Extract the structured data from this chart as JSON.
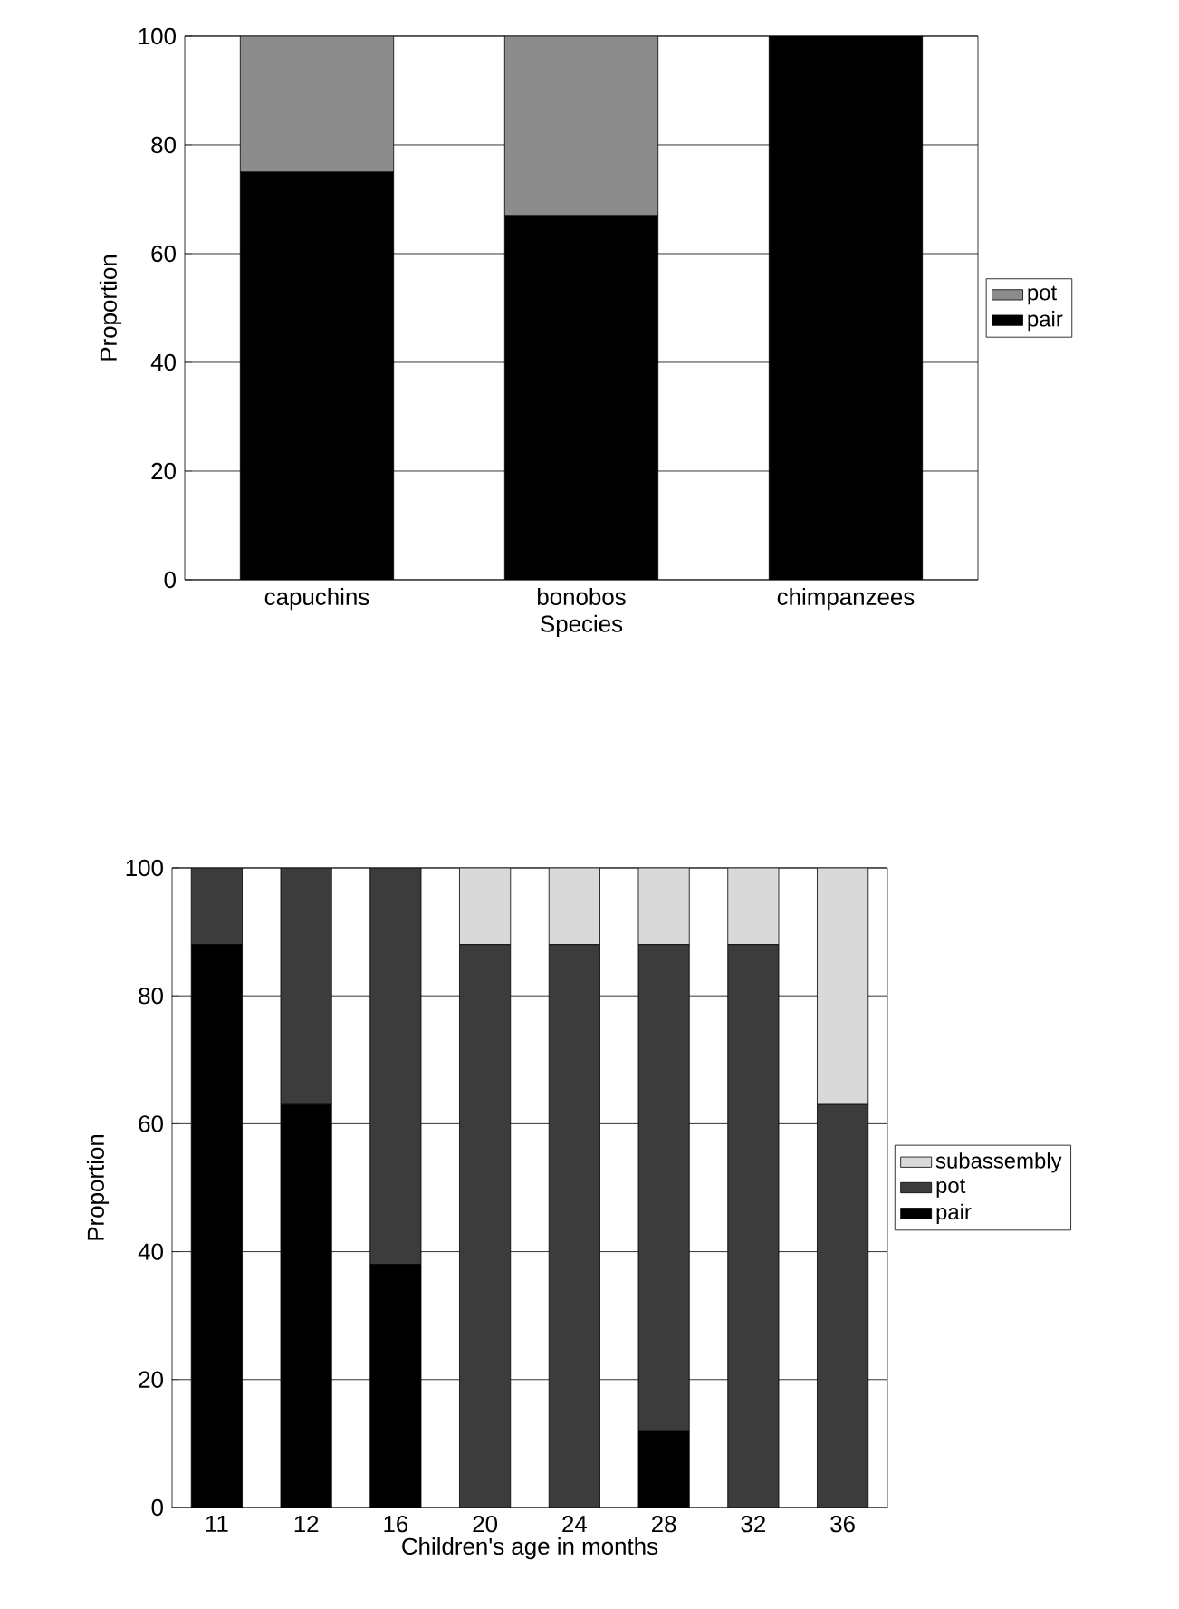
{
  "chart_data": [
    {
      "type": "bar",
      "stacked": true,
      "xlabel": "Species",
      "ylabel": "Proportion",
      "categories": [
        "capuchins",
        "bonobos",
        "chimpanzees"
      ],
      "series": [
        {
          "name": "pair",
          "color": "#000000",
          "values": [
            75,
            67,
            100
          ]
        },
        {
          "name": "pot",
          "color": "#8c8c8c",
          "values": [
            25,
            33,
            0
          ]
        }
      ],
      "ylim": [
        0,
        100
      ],
      "yticks": [
        0,
        20,
        40,
        60,
        80,
        100
      ],
      "grid": "y",
      "legend": "right"
    },
    {
      "type": "bar",
      "stacked": true,
      "xlabel": "Children's age in months",
      "ylabel": "Proportion",
      "categories": [
        "11",
        "12",
        "16",
        "20",
        "24",
        "28",
        "32",
        "36"
      ],
      "series": [
        {
          "name": "pair",
          "color": "#000000",
          "values": [
            88,
            63,
            38,
            0,
            0,
            12,
            0,
            0
          ]
        },
        {
          "name": "pot",
          "color": "#3c3c3c",
          "values": [
            12,
            37,
            62,
            88,
            88,
            76,
            88,
            63
          ]
        },
        {
          "name": "subassembly",
          "color": "#d9d9d9",
          "values": [
            0,
            0,
            0,
            12,
            12,
            12,
            12,
            37
          ]
        }
      ],
      "ylim": [
        0,
        100
      ],
      "yticks": [
        0,
        20,
        40,
        60,
        80,
        100
      ],
      "grid": "y",
      "legend": "right"
    }
  ]
}
